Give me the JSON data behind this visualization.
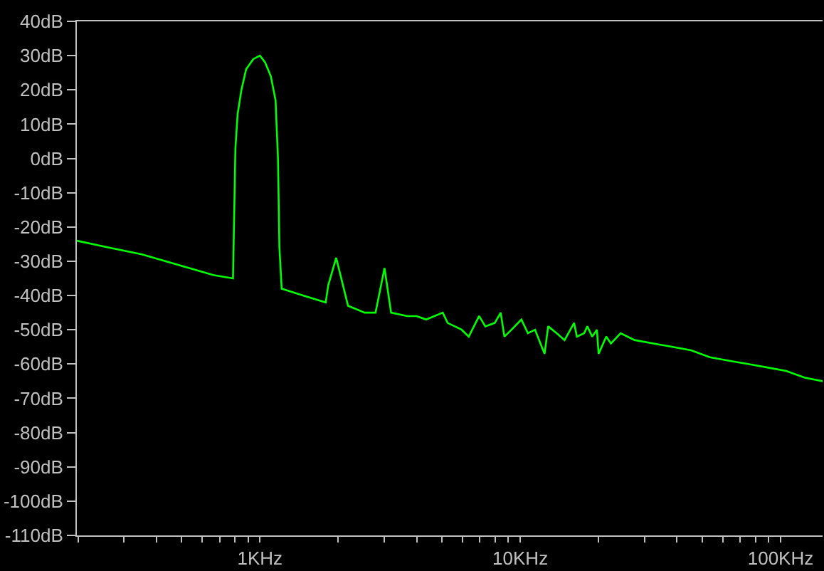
{
  "chart_data": {
    "type": "line",
    "log": "x",
    "grid": false,
    "marker": "none",
    "line_style": "solid",
    "xlim": [
      0.198,
      145
    ],
    "ylim": [
      -110,
      40
    ],
    "xticks": [
      {
        "value": 0.2,
        "label": null
      },
      {
        "value": 0.3,
        "label": null
      },
      {
        "value": 0.4,
        "label": null
      },
      {
        "value": 0.5,
        "label": null
      },
      {
        "value": 0.6,
        "label": null
      },
      {
        "value": 0.7,
        "label": null
      },
      {
        "value": 0.8,
        "label": null
      },
      {
        "value": 0.9,
        "label": null
      },
      {
        "value": 1,
        "label": "1KHz"
      },
      {
        "value": 2,
        "label": null
      },
      {
        "value": 3,
        "label": null
      },
      {
        "value": 4,
        "label": null
      },
      {
        "value": 5,
        "label": null
      },
      {
        "value": 6,
        "label": null
      },
      {
        "value": 7,
        "label": null
      },
      {
        "value": 8,
        "label": null
      },
      {
        "value": 9,
        "label": null
      },
      {
        "value": 10,
        "label": "10KHz"
      },
      {
        "value": 20,
        "label": null
      },
      {
        "value": 30,
        "label": null
      },
      {
        "value": 40,
        "label": null
      },
      {
        "value": 50,
        "label": null
      },
      {
        "value": 60,
        "label": null
      },
      {
        "value": 70,
        "label": null
      },
      {
        "value": 80,
        "label": null
      },
      {
        "value": 90,
        "label": null
      },
      {
        "value": 100,
        "label": "100KHz"
      }
    ],
    "yticks": [
      {
        "value": 40,
        "label": "40dB"
      },
      {
        "value": 30,
        "label": "30dB"
      },
      {
        "value": 20,
        "label": "20dB"
      },
      {
        "value": 10,
        "label": "10dB"
      },
      {
        "value": 0,
        "label": "0dB"
      },
      {
        "value": -10,
        "label": "-10dB"
      },
      {
        "value": -20,
        "label": "-20dB"
      },
      {
        "value": -30,
        "label": "-30dB"
      },
      {
        "value": -40,
        "label": "-40dB"
      },
      {
        "value": -50,
        "label": "-50dB"
      },
      {
        "value": -60,
        "label": "-60dB"
      },
      {
        "value": -70,
        "label": "-70dB"
      },
      {
        "value": -80,
        "label": "-80dB"
      },
      {
        "value": -90,
        "label": "-90dB"
      },
      {
        "value": -100,
        "label": "-100dB"
      },
      {
        "value": -110,
        "label": "-110dB"
      }
    ],
    "series": [
      {
        "color": "#00ff00",
        "x": [
          0.198,
          0.263,
          0.352,
          0.435,
          0.535,
          0.661,
          0.788,
          0.805,
          0.821,
          0.849,
          0.885,
          0.943,
          1.0,
          1.047,
          1.101,
          1.148,
          1.173,
          1.188,
          1.212,
          1.464,
          1.789,
          1.83,
          1.963,
          2.18,
          2.525,
          2.78,
          3.01,
          3.19,
          3.68,
          4.0,
          4.35,
          5.04,
          5.26,
          5.96,
          6.34,
          6.95,
          7.34,
          7.98,
          8.41,
          8.69,
          9.25,
          10.1,
          10.7,
          11.4,
          12.1,
          12.4,
          12.8,
          13.8,
          14.8,
          16.1,
          16.5,
          17.6,
          18.1,
          18.9,
          19.7,
          20.0,
          21.4,
          22.3,
          24.3,
          27.5,
          32.5,
          38.5,
          45.3,
          53.5,
          63.0,
          75.0,
          88.9,
          105,
          124,
          145
        ],
        "values": [
          -24,
          -26,
          -28,
          -30,
          -32,
          -34,
          -35,
          3,
          13,
          20,
          26,
          29,
          30,
          28,
          24,
          17,
          0,
          -26,
          -38,
          -40,
          -42,
          -37,
          -29,
          -43,
          -45,
          -45,
          -32,
          -45,
          -46,
          -46,
          -47,
          -45,
          -48,
          -50,
          -52,
          -46,
          -49,
          -48,
          -45,
          -52,
          -50,
          -47,
          -51,
          -50,
          -55,
          -57,
          -49,
          -51,
          -53,
          -48,
          -52,
          -51,
          -49,
          -52,
          -50,
          -57,
          -52,
          -54,
          -51,
          -53,
          -54,
          -55,
          -56,
          -58,
          -59,
          -60,
          -61,
          -62,
          -64,
          -65
        ]
      }
    ]
  }
}
